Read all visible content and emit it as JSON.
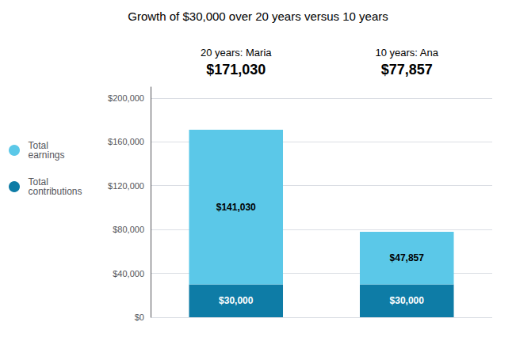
{
  "chart_data": {
    "type": "bar",
    "title": "Growth of $30,000 over 20 years versus 10 years",
    "categories": [
      "20 years: Maria",
      "10 years: Ana"
    ],
    "stacked": true,
    "series": [
      {
        "name": "Total\ncontributions",
        "color": "#0E7CA6",
        "values": [
          30000,
          30000
        ],
        "value_labels": [
          "$30,000",
          "$30,000"
        ]
      },
      {
        "name": "Total\nearnings",
        "color": "#5BC8E8",
        "values": [
          141030,
          47857
        ],
        "value_labels": [
          "$141,030",
          "$47,857"
        ]
      }
    ],
    "totals": [
      171030,
      77857
    ],
    "total_labels": [
      "$171,030",
      "$77,857"
    ],
    "ylim": [
      0,
      210000
    ],
    "yticks": [
      {
        "value": 0,
        "label": "$0"
      },
      {
        "value": 40000,
        "label": "$40,000"
      },
      {
        "value": 80000,
        "label": "$80,000"
      },
      {
        "value": 120000,
        "label": "$120,000"
      },
      {
        "value": 160000,
        "label": "$160,000"
      },
      {
        "value": 200000,
        "label": "$200,000"
      }
    ],
    "grid": true,
    "legend": "left",
    "data_labels": true
  }
}
